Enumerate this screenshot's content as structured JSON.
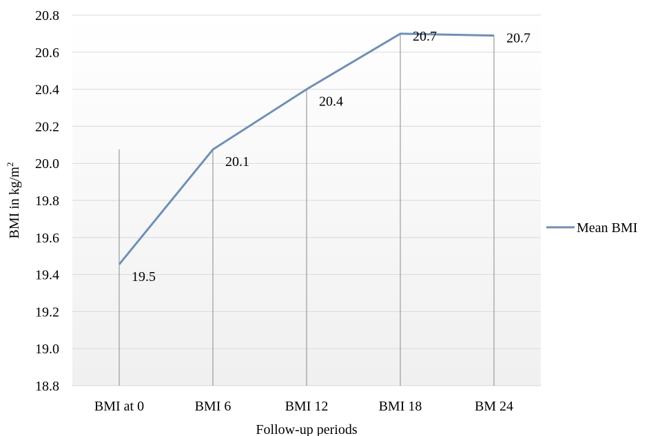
{
  "chart_data": {
    "type": "line",
    "categories": [
      "BMI at 0",
      "BMI 6",
      "BMI 12",
      "BMI 18",
      "BM 24"
    ],
    "series": [
      {
        "name": "Mean BMI",
        "values": [
          19.455,
          20.075,
          20.4,
          20.7,
          20.69
        ],
        "data_labels": [
          "19.5",
          "20.1",
          "20.4",
          "20.7",
          "20.7"
        ],
        "color": "#6f8fb5"
      }
    ],
    "title": "",
    "xlabel": "Follow-up periods",
    "ylabel_main": "BMI in kg/m",
    "ylabel_sup": "2",
    "ylim": [
      18.8,
      20.8
    ],
    "yticks": [
      "18.8",
      "19.0",
      "19.2",
      "19.4",
      "19.6",
      "19.8",
      "20.0",
      "20.2",
      "20.4",
      "20.6",
      "20.8"
    ],
    "grid": true,
    "legend_position": "right",
    "drop_lines": true,
    "drop_line_color": "#9a9a9a",
    "grid_color": "#d9d9d9",
    "background_gradient": [
      "#ffffff",
      "#f0f0f0"
    ]
  }
}
